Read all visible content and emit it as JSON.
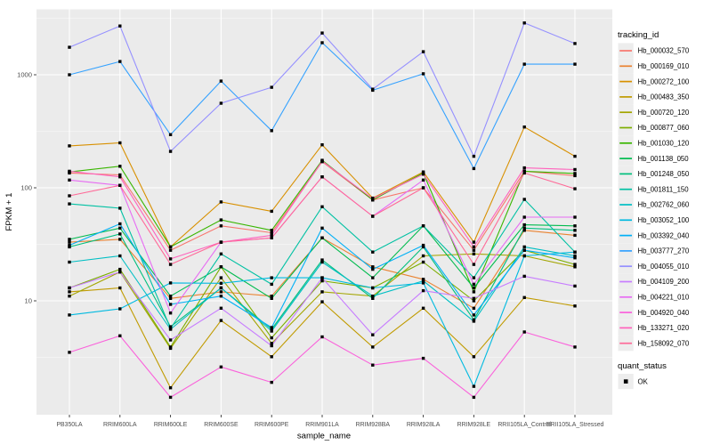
{
  "figure": {
    "bg": "#ffffff",
    "panel_bg": "#ebebeb",
    "grid_color": "#ffffff",
    "tick_color": "#333333",
    "point_color": "#000000",
    "legend_key_bg": "#ededed"
  },
  "chart_data": {
    "type": "line",
    "title": "",
    "xlabel": "sample_name",
    "ylabel": "FPKM + 1",
    "y_scale": "log10",
    "y_ticks": [
      "10",
      "100",
      "1000"
    ],
    "y_tick_values": [
      10,
      100,
      1000
    ],
    "ylim": [
      0.92,
      3750
    ],
    "grid": "on",
    "legend_position": "right",
    "legend_title": "tracking_id",
    "legend2": {
      "title": "quant_status",
      "items": [
        {
          "label": "OK",
          "marker": "black-square"
        }
      ]
    },
    "categories": [
      "PB350LA",
      "RRIM600LA",
      "RRIM600LE",
      "RRIM600SE",
      "RRIM600PE",
      "RRIM901LA",
      "RRIM928BA",
      "RRIM928LA",
      "RRIM928LE",
      "RRII105LA_Control",
      "RRII105LA_Stressed"
    ],
    "series": [
      {
        "name": "Hb_000032_570",
        "color": "#F8766D",
        "values": [
          135,
          130,
          28,
          46,
          40,
          170,
          78,
          100,
          28,
          140,
          128
        ]
      },
      {
        "name": "Hb_000169_010",
        "color": "#EA8331",
        "values": [
          33,
          35,
          10.5,
          12,
          11,
          36,
          20,
          15.5,
          8.6,
          42,
          38
        ]
      },
      {
        "name": "Hb_000272_100",
        "color": "#D89000",
        "values": [
          235,
          250,
          30,
          75,
          62,
          240,
          81,
          138,
          33,
          345,
          190
        ]
      },
      {
        "name": "Hb_000483_350",
        "color": "#C09B00",
        "values": [
          12,
          13,
          1.7,
          6.7,
          3.2,
          9.8,
          3.9,
          8.6,
          3.2,
          10.7,
          9
        ]
      },
      {
        "name": "Hb_000720_120",
        "color": "#A3A500",
        "values": [
          11,
          18,
          3.8,
          16,
          4.2,
          12,
          11,
          25,
          26,
          25,
          20
        ]
      },
      {
        "name": "Hb_000877_060",
        "color": "#7CAE00",
        "values": [
          13,
          19,
          3.9,
          20,
          4.7,
          15,
          13,
          22,
          10,
          28,
          21
        ]
      },
      {
        "name": "Hb_001030_120",
        "color": "#39B600",
        "values": [
          138,
          155,
          30,
          52,
          42,
          175,
          78,
          135,
          12,
          140,
          134
        ]
      },
      {
        "name": "Hb_001138_050",
        "color": "#00BB4E",
        "values": [
          35,
          44,
          11,
          20,
          10.5,
          36,
          16,
          46,
          13,
          47,
          46
        ]
      },
      {
        "name": "Hb_001248_050",
        "color": "#00BF7D",
        "values": [
          30,
          39,
          5.9,
          13,
          5.6,
          23,
          10.5,
          30,
          6.8,
          44,
          42
        ]
      },
      {
        "name": "Hb_001811_150",
        "color": "#00C1A3",
        "values": [
          72,
          66,
          5.7,
          26,
          14,
          68,
          27,
          46,
          16,
          79,
          27
        ]
      },
      {
        "name": "Hb_002762_060",
        "color": "#00BFC4",
        "values": [
          22,
          25,
          5.6,
          13,
          5.4,
          22,
          11,
          15,
          6.6,
          30,
          25
        ]
      },
      {
        "name": "Hb_003052_100",
        "color": "#00BAE0",
        "values": [
          7.5,
          8.5,
          14.4,
          14.3,
          16,
          16,
          13,
          14.4,
          1.75,
          25,
          27
        ]
      },
      {
        "name": "Hb_003392_040",
        "color": "#00B0F6",
        "values": [
          31,
          48,
          9.3,
          11,
          5.8,
          44,
          19,
          31,
          7.5,
          28,
          24
        ]
      },
      {
        "name": "Hb_003777_270",
        "color": "#35A2FF",
        "values": [
          1000,
          1310,
          295,
          880,
          320,
          1920,
          730,
          1020,
          148,
          1240,
          1240
        ]
      },
      {
        "name": "Hb_004055_010",
        "color": "#9590FF",
        "values": [
          1750,
          2700,
          210,
          560,
          775,
          2340,
          745,
          1600,
          190,
          2870,
          1890
        ]
      },
      {
        "name": "Hb_004109_200",
        "color": "#C77CFF",
        "values": [
          13,
          18,
          4.5,
          8.6,
          4,
          16,
          5,
          12.3,
          10.5,
          16.5,
          13.5
        ]
      },
      {
        "name": "Hb_004221_010",
        "color": "#E76BF3",
        "values": [
          117,
          105,
          7.8,
          33,
          36,
          125,
          56,
          117,
          14,
          55,
          55
        ]
      },
      {
        "name": "Hb_004920_040",
        "color": "#FA62DB",
        "values": [
          3.5,
          4.9,
          1.4,
          2.6,
          1.9,
          4.8,
          2.7,
          3.1,
          1.4,
          5.3,
          3.9
        ]
      },
      {
        "name": "Hb_133271_020",
        "color": "#FF62BC",
        "values": [
          140,
          125,
          23.5,
          33,
          38,
          172,
          80,
          132,
          30,
          150,
          145
        ]
      },
      {
        "name": "Hb_158092_070",
        "color": "#FF6A98",
        "values": [
          85,
          105,
          21,
          33,
          36,
          125,
          56,
          100,
          21,
          135,
          98
        ]
      }
    ]
  }
}
